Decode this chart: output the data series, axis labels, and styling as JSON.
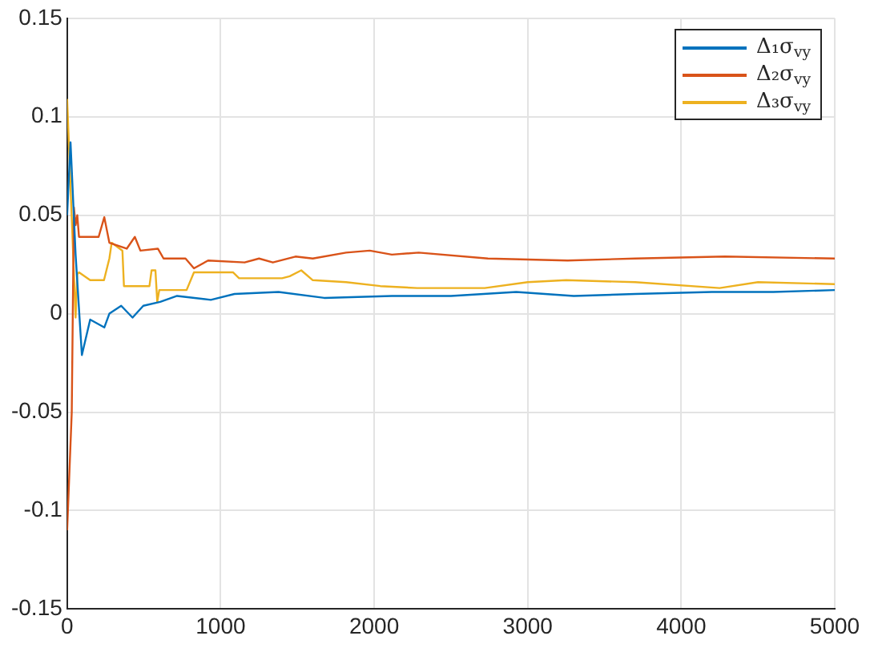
{
  "chart_data": {
    "type": "line",
    "xlim": [
      0,
      5000
    ],
    "xticks": [
      0,
      1000,
      2000,
      3000,
      4000,
      5000
    ],
    "ylim": [
      -0.15,
      0.15
    ],
    "yticks": [
      -0.15,
      -0.1,
      -0.05,
      0,
      0.05,
      0.1,
      0.15
    ],
    "grid": true,
    "legend": "top right",
    "line_style": "solid",
    "series": [
      {
        "name": "Δ₁σ$_{vy}$",
        "color": "#0072bd",
        "x": [
          0,
          22,
          55,
          96,
          150,
          242,
          275,
          352,
          426,
          496,
          606,
          716,
          936,
          1090,
          1377,
          1674,
          2115,
          2500,
          2925,
          3300,
          3700,
          4200,
          4600,
          5000
        ],
        "values": [
          0.05,
          0.087,
          0.03,
          -0.021,
          -0.003,
          -0.007,
          0,
          0.004,
          -0.002,
          0.004,
          0.006,
          0.009,
          0.007,
          0.01,
          0.011,
          0.008,
          0.009,
          0.009,
          0.011,
          0.009,
          0.01,
          0.011,
          0.011,
          0.012
        ]
      },
      {
        "name": "Δ₂σ$_{vy}$",
        "color": "#d95319",
        "x": [
          0,
          30,
          44,
          55,
          66,
          77,
          205,
          242,
          275,
          388,
          441,
          477,
          591,
          628,
          771,
          826,
          918,
          1156,
          1250,
          1340,
          1487,
          1600,
          1817,
          1971,
          2115,
          2290,
          2741,
          3260,
          3700,
          4285,
          5000
        ],
        "values": [
          -0.11,
          -0.05,
          0.054,
          0.045,
          0.05,
          0.039,
          0.039,
          0.049,
          0.036,
          0.033,
          0.039,
          0.032,
          0.033,
          0.028,
          0.028,
          0.023,
          0.027,
          0.026,
          0.028,
          0.026,
          0.029,
          0.028,
          0.031,
          0.032,
          0.03,
          0.031,
          0.028,
          0.027,
          0.028,
          0.029,
          0.028
        ]
      },
      {
        "name": "Δ₃σ$_{vy}$",
        "color": "#edb120",
        "x": [
          0,
          55,
          66,
          77,
          150,
          240,
          275,
          290,
          360,
          370,
          536,
          550,
          575,
          587,
          600,
          778,
          826,
          1080,
          1120,
          1400,
          1450,
          1525,
          1600,
          1817,
          2040,
          2280,
          2720,
          3000,
          3250,
          3700,
          4250,
          4500,
          5000
        ],
        "values": [
          0.109,
          -0.002,
          0.02,
          0.021,
          0.017,
          0.017,
          0.028,
          0.036,
          0.032,
          0.014,
          0.014,
          0.022,
          0.022,
          0.006,
          0.012,
          0.012,
          0.021,
          0.021,
          0.018,
          0.018,
          0.019,
          0.022,
          0.017,
          0.016,
          0.014,
          0.013,
          0.013,
          0.016,
          0.017,
          0.016,
          0.013,
          0.016,
          0.015
        ]
      }
    ]
  }
}
